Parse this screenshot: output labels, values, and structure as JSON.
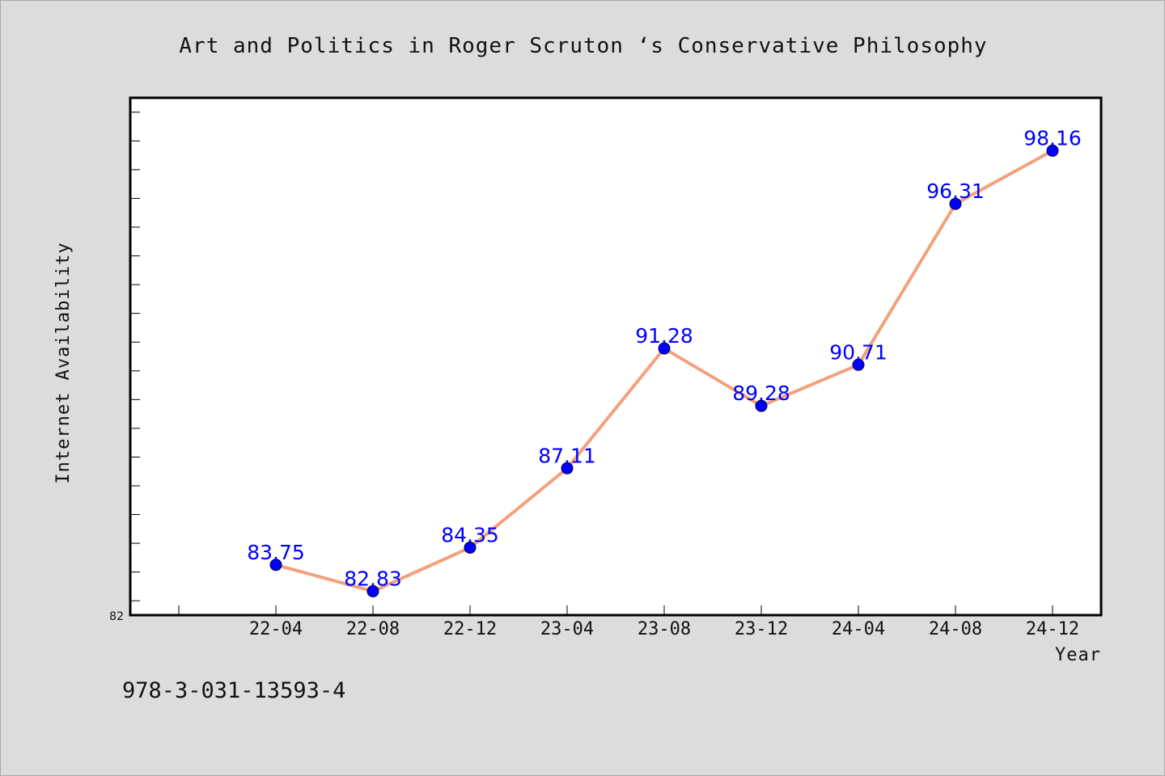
{
  "chart_data": {
    "type": "line",
    "title": "Art and Politics in Roger Scruton ‘s Conservative Philosophy",
    "xlabel": "Year",
    "ylabel": "Internet Availability",
    "ymin_label": "82",
    "categories": [
      "22-04",
      "22-08",
      "22-12",
      "23-04",
      "23-08",
      "23-12",
      "24-04",
      "24-08",
      "24-12"
    ],
    "values": [
      83.75,
      82.83,
      84.35,
      87.11,
      91.28,
      89.28,
      90.71,
      96.31,
      98.16
    ],
    "value_labels": [
      "83.75",
      "82.83",
      "84.35",
      "87.11",
      "91.28",
      "89.28",
      "90.71",
      "96.31",
      "98.16"
    ],
    "ylim": [
      82,
      100
    ],
    "grid": false,
    "legend": "none",
    "colors": {
      "line": "#f4a07c",
      "marker": "#0000ff",
      "data_label": "#0000ff",
      "plot_background": "#ffffff",
      "page_background": "#dcdcdc"
    }
  },
  "footer": {
    "isbn": "978-3-031-13593-4"
  }
}
